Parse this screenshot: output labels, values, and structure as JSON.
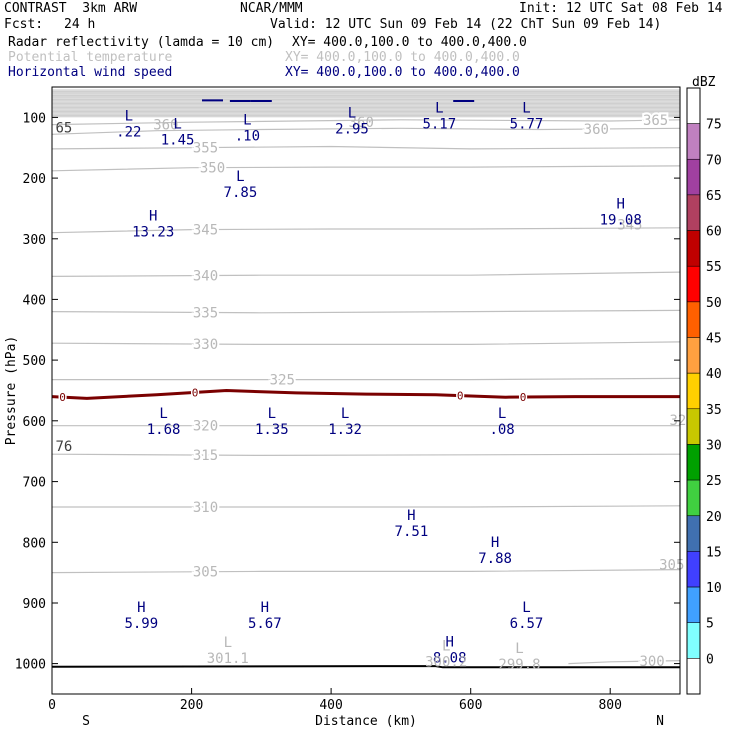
{
  "header": {
    "model": "CONTRAST  3km ARW",
    "center": "NCAR/MMM",
    "init": "Init: 12 UTC Sat 08 Feb 14",
    "fcst_label": "Fcst:",
    "fcst_value": "24 h",
    "valid": "Valid: 12 UTC Sun 09 Feb 14 (22 ChT Sun 09 Feb 14)",
    "fields": [
      {
        "name": "Radar reflectivity (lamda = 10 cm)",
        "xy": "XY= 400.0,100.0 to 400.0,400.0",
        "color": "#000000"
      },
      {
        "name": "Potential temperature",
        "xy": "XY= 400.0,100.0 to 400.0,400.0",
        "color": "#c0c0c0"
      },
      {
        "name": "Horizontal wind speed",
        "xy": "XY= 400.0,100.0 to 400.0,400.0",
        "color": "#000080"
      }
    ]
  },
  "chart_data": {
    "type": "cross-section",
    "xlabel": "Distance (km)",
    "ylabel": "Pressure (hPa)",
    "xlim": [
      0,
      900
    ],
    "ylim": [
      1050,
      50
    ],
    "x_ticks": [
      "0",
      "200",
      "400",
      "600",
      "800"
    ],
    "x_tick_values": [
      0,
      200,
      400,
      600,
      800
    ],
    "y_ticks": [
      "100",
      "200",
      "300",
      "400",
      "500",
      "600",
      "700",
      "800",
      "900",
      "1000"
    ],
    "y_tick_values": [
      100,
      200,
      300,
      400,
      500,
      600,
      700,
      800,
      900,
      1000
    ],
    "end_labels": {
      "left": "S",
      "right": "N"
    },
    "theta_contours": [
      {
        "level": 365,
        "label": "365",
        "label_x": 865,
        "pts": [
          [
            0,
            112
          ],
          [
            200,
            108
          ],
          [
            500,
            104
          ],
          [
            800,
            106
          ],
          [
            900,
            104
          ]
        ]
      },
      {
        "level": 360,
        "label": "360",
        "label_x": 780,
        "pts": [
          [
            0,
            128
          ],
          [
            150,
            122
          ],
          [
            300,
            120
          ],
          [
            500,
            118
          ],
          [
            700,
            120
          ],
          [
            900,
            118
          ]
        ]
      },
      {
        "level": 355,
        "label": "355",
        "label_x": 220,
        "pts": [
          [
            0,
            152
          ],
          [
            200,
            150
          ],
          [
            400,
            148
          ],
          [
            600,
            152
          ],
          [
            900,
            150
          ]
        ]
      },
      {
        "level": 350,
        "label": "350",
        "label_x": 230,
        "pts": [
          [
            0,
            188
          ],
          [
            200,
            183
          ],
          [
            400,
            182
          ],
          [
            600,
            182
          ],
          [
            900,
            180
          ]
        ]
      },
      {
        "level": 345,
        "label": "345",
        "label_x": 220,
        "pts": [
          [
            0,
            290
          ],
          [
            200,
            285
          ],
          [
            400,
            284
          ],
          [
            600,
            284
          ],
          [
            900,
            282
          ]
        ]
      },
      {
        "level": 340,
        "label": "340",
        "label_x": 220,
        "pts": [
          [
            0,
            362
          ],
          [
            300,
            360
          ],
          [
            600,
            360
          ],
          [
            900,
            355
          ]
        ]
      },
      {
        "level": 335,
        "label": "335",
        "label_x": 220,
        "pts": [
          [
            0,
            420
          ],
          [
            300,
            422
          ],
          [
            600,
            420
          ],
          [
            900,
            418
          ]
        ]
      },
      {
        "level": 330,
        "label": "330",
        "label_x": 220,
        "pts": [
          [
            0,
            472
          ],
          [
            300,
            474
          ],
          [
            600,
            474
          ],
          [
            900,
            470
          ]
        ]
      },
      {
        "level": 325,
        "label": "325",
        "label_x": 330,
        "pts": [
          [
            0,
            532
          ],
          [
            300,
            532
          ],
          [
            600,
            532
          ],
          [
            900,
            530
          ]
        ]
      },
      {
        "level": 320,
        "label": "320",
        "label_x": 220,
        "pts": [
          [
            0,
            608
          ],
          [
            300,
            608
          ],
          [
            600,
            608
          ],
          [
            900,
            608
          ]
        ]
      },
      {
        "level": 315,
        "label": "315",
        "label_x": 220,
        "pts": [
          [
            0,
            655
          ],
          [
            300,
            657
          ],
          [
            600,
            656
          ],
          [
            900,
            655
          ]
        ]
      },
      {
        "level": 310,
        "label": "310",
        "label_x": 220,
        "pts": [
          [
            0,
            742
          ],
          [
            300,
            742
          ],
          [
            600,
            742
          ],
          [
            900,
            740
          ]
        ]
      },
      {
        "level": 305,
        "label": "305",
        "label_x": 220,
        "pts": [
          [
            0,
            850
          ],
          [
            300,
            848
          ],
          [
            600,
            848
          ],
          [
            900,
            845
          ]
        ]
      },
      {
        "level": 300,
        "label": "300",
        "label_x": 860,
        "pts": [
          [
            740,
            1000
          ],
          [
            800,
            997
          ],
          [
            900,
            995
          ]
        ]
      }
    ],
    "freezing_line": {
      "label": "0",
      "label_xs": [
        15,
        205,
        585,
        675
      ],
      "pts": [
        [
          0,
          560
        ],
        [
          50,
          563
        ],
        [
          150,
          557
        ],
        [
          250,
          550
        ],
        [
          350,
          554
        ],
        [
          450,
          556
        ],
        [
          550,
          557
        ],
        [
          650,
          561
        ],
        [
          750,
          560
        ],
        [
          900,
          560
        ]
      ]
    },
    "wind_extrema": [
      {
        "type": "L",
        "value": ".22",
        "x": 110,
        "p": 105
      },
      {
        "type": "L",
        "value": "1.45",
        "x": 180,
        "p": 118
      },
      {
        "type": "L",
        "value": ".10",
        "x": 280,
        "p": 112
      },
      {
        "type": "L",
        "value": "2.95",
        "x": 430,
        "p": 100
      },
      {
        "type": "L",
        "value": "5.17",
        "x": 555,
        "p": 92
      },
      {
        "type": "L",
        "value": "5.77",
        "x": 680,
        "p": 92
      },
      {
        "type": "L",
        "value": "7.85",
        "x": 270,
        "p": 205
      },
      {
        "type": "H",
        "value": "13.23",
        "x": 145,
        "p": 270
      },
      {
        "type": "H",
        "value": "19.08",
        "x": 815,
        "p": 250
      },
      {
        "type": "L",
        "value": "1.68",
        "x": 160,
        "p": 595
      },
      {
        "type": "L",
        "value": "1.35",
        "x": 315,
        "p": 595
      },
      {
        "type": "L",
        "value": "1.32",
        "x": 420,
        "p": 595
      },
      {
        "type": "L",
        "value": ".08",
        "x": 645,
        "p": 595
      },
      {
        "type": "H",
        "value": "7.51",
        "x": 515,
        "p": 763
      },
      {
        "type": "H",
        "value": "7.88",
        "x": 635,
        "p": 808
      },
      {
        "type": "H",
        "value": "5.99",
        "x": 128,
        "p": 915
      },
      {
        "type": "H",
        "value": "5.67",
        "x": 305,
        "p": 915
      },
      {
        "type": "L",
        "value": "6.57",
        "x": 680,
        "p": 915
      },
      {
        "type": "H",
        "value": "8.08",
        "x": 570,
        "p": 972
      }
    ],
    "theta_minima": [
      {
        "type": "L",
        "value": "301.1",
        "x": 252,
        "p": 992
      },
      {
        "type": "L",
        "value": "300.2",
        "x": 565,
        "p": 998
      },
      {
        "type": "L",
        "value": "299.8",
        "x": 670,
        "p": 1002
      }
    ],
    "edge_labels": [
      {
        "text": "65",
        "x": 5,
        "p": 125
      },
      {
        "text": "360",
        "x": 145,
        "p": 120
      },
      {
        "text": "360",
        "x": 425,
        "p": 116
      },
      {
        "text": "345",
        "x": 810,
        "p": 285
      },
      {
        "text": "320",
        "x": 885,
        "p": 607
      },
      {
        "text": "76",
        "x": 5,
        "p": 650
      },
      {
        "text": "305",
        "x": 870,
        "p": 845
      }
    ],
    "surface": {
      "pts": [
        [
          0,
          1005
        ],
        [
          550,
          1004
        ],
        [
          560,
          1006
        ],
        [
          900,
          1006
        ]
      ]
    },
    "colorbar": {
      "unit": "dBZ",
      "labels": [
        "75",
        "70",
        "65",
        "60",
        "55",
        "50",
        "45",
        "40",
        "35",
        "30",
        "25",
        "20",
        "15",
        "10",
        "5",
        "0"
      ],
      "colors": [
        "#ffffff",
        "#c080c0",
        "#a040a0",
        "#b04060",
        "#c00000",
        "#ff0000",
        "#ff6000",
        "#ffa040",
        "#ffd000",
        "#c8c800",
        "#00a000",
        "#40d040",
        "#4070b0",
        "#4040ff",
        "#40a0ff",
        "#80ffff",
        "#ffffff"
      ]
    }
  }
}
